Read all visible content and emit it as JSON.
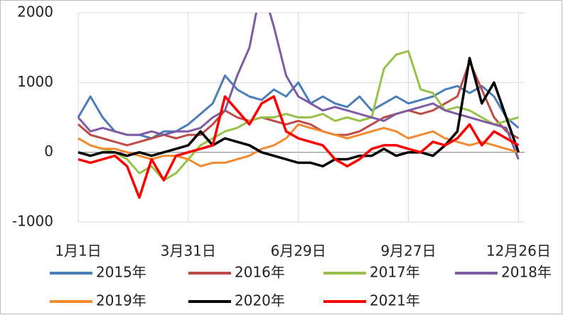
{
  "chart_data": {
    "type": "line",
    "x": [
      0,
      10,
      20,
      30,
      40,
      50,
      60,
      70,
      80,
      90,
      100,
      110,
      120,
      130,
      140,
      150,
      160,
      170,
      180,
      190,
      200,
      210,
      220,
      230,
      240,
      250,
      260,
      270,
      280,
      290,
      300,
      310,
      320,
      330,
      340,
      350,
      360
    ],
    "xlim": [
      0,
      365
    ],
    "xticks": [
      {
        "value": 0,
        "label": "1月1日"
      },
      {
        "value": 90,
        "label": "3月31日"
      },
      {
        "value": 180,
        "label": "6月29日"
      },
      {
        "value": 270,
        "label": "9月27日"
      },
      {
        "value": 360,
        "label": "12月26日"
      }
    ],
    "ylim": [
      -1000,
      2000
    ],
    "yticks": [
      -1000,
      0,
      1000,
      2000
    ],
    "grid": true,
    "legend": "bottom",
    "series": [
      {
        "name": "2015年",
        "color": "#4a7ebb",
        "values": [
          500,
          800,
          500,
          300,
          250,
          250,
          200,
          300,
          300,
          400,
          550,
          700,
          1100,
          900,
          800,
          750,
          900,
          800,
          1000,
          700,
          800,
          700,
          650,
          800,
          600,
          700,
          800,
          700,
          750,
          800,
          900,
          950,
          850,
          950,
          800,
          500,
          350
        ]
      },
      {
        "name": "2016年",
        "color": "#be4b48",
        "values": [
          400,
          250,
          200,
          150,
          100,
          150,
          200,
          250,
          200,
          250,
          250,
          400,
          600,
          500,
          450,
          500,
          450,
          400,
          450,
          400,
          300,
          250,
          250,
          300,
          400,
          500,
          550,
          600,
          550,
          600,
          700,
          800,
          1300,
          900,
          500,
          300,
          200
        ]
      },
      {
        "name": "2017年",
        "color": "#98c14a",
        "values": [
          200,
          100,
          50,
          0,
          -100,
          -300,
          -200,
          -400,
          -300,
          -100,
          100,
          200,
          300,
          350,
          450,
          500,
          500,
          550,
          500,
          500,
          550,
          450,
          500,
          450,
          500,
          1200,
          1400,
          1450,
          900,
          850,
          600,
          650,
          600,
          500,
          400,
          450,
          500
        ]
      },
      {
        "name": "2018年",
        "color": "#7f5ba6",
        "values": [
          500,
          300,
          350,
          300,
          250,
          250,
          300,
          250,
          300,
          300,
          350,
          500,
          600,
          1100,
          1500,
          2400,
          1800,
          1100,
          800,
          700,
          600,
          650,
          600,
          550,
          500,
          450,
          550,
          600,
          650,
          700,
          600,
          550,
          500,
          450,
          400,
          350,
          -100
        ]
      },
      {
        "name": "2019年",
        "color": "#f38a30",
        "values": [
          200,
          100,
          50,
          50,
          0,
          -50,
          -100,
          -50,
          -50,
          -100,
          -200,
          -150,
          -150,
          -100,
          -50,
          50,
          100,
          200,
          400,
          350,
          300,
          250,
          200,
          250,
          300,
          350,
          300,
          200,
          250,
          300,
          200,
          150,
          100,
          150,
          100,
          50,
          0
        ]
      },
      {
        "name": "2020年",
        "color": "#000000",
        "values": [
          0,
          -50,
          0,
          0,
          -50,
          0,
          -50,
          0,
          50,
          100,
          300,
          100,
          200,
          150,
          100,
          0,
          -50,
          -100,
          -150,
          -150,
          -200,
          -100,
          -100,
          -50,
          -50,
          50,
          -50,
          0,
          0,
          -50,
          100,
          300,
          1350,
          700,
          1000,
          500,
          0
        ]
      },
      {
        "name": "2021年",
        "color": "#ff0000",
        "values": [
          -100,
          -150,
          -100,
          -50,
          -200,
          -650,
          -100,
          -400,
          -50,
          0,
          50,
          100,
          800,
          600,
          400,
          700,
          800,
          300,
          200,
          150,
          100,
          -100,
          -200,
          -100,
          50,
          100,
          100,
          50,
          0,
          150,
          100,
          200,
          400,
          100,
          300,
          200,
          100
        ]
      }
    ]
  }
}
